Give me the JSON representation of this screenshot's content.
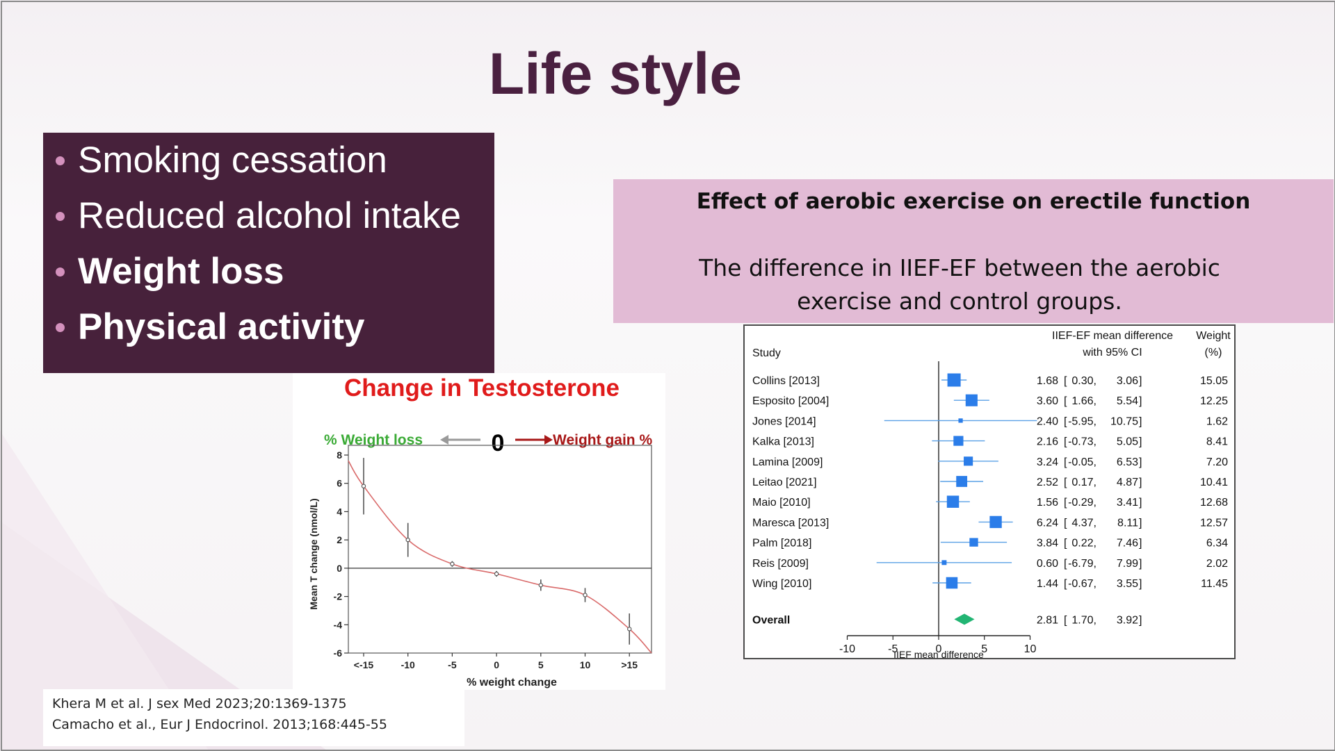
{
  "slide": {
    "title": "Life style",
    "colors": {
      "title": "#4a2040",
      "bullet_box": "#47213b",
      "bullet_dot": "#d491bd",
      "pink_box": "#e2bbd5"
    }
  },
  "bullets": [
    {
      "text": "Smoking cessation",
      "bold": false
    },
    {
      "text": "Reduced alcohol intake",
      "bold": false
    },
    {
      "text": "Weight loss",
      "bold": true
    },
    {
      "text": "Physical activity",
      "bold": true
    }
  ],
  "aerobic": {
    "heading": "Effect of aerobic exercise on erectile function",
    "description": "The difference in IIEF-EF between the aerobic exercise and control groups."
  },
  "chart_data": [
    {
      "type": "forest",
      "header": {
        "study": "Study",
        "ci_line1": "IIEF-EF mean difference",
        "ci_line2": "with 95% CI",
        "weight_line1": "Weight",
        "weight_line2": "(%)"
      },
      "studies": [
        {
          "name": "Collins [2013]",
          "md": "1.68",
          "lo": "0.30",
          "hi": "3.06",
          "weight": "15.05"
        },
        {
          "name": "Esposito [2004]",
          "md": "3.60",
          "lo": "1.66",
          "hi": "5.54",
          "weight": "12.25"
        },
        {
          "name": "Jones [2014]",
          "md": "2.40",
          "lo": "-5.95",
          "hi": "10.75",
          "weight": "1.62"
        },
        {
          "name": "Kalka [2013]",
          "md": "2.16",
          "lo": "-0.73",
          "hi": "5.05",
          "weight": "8.41"
        },
        {
          "name": "Lamina [2009]",
          "md": "3.24",
          "lo": "-0.05",
          "hi": "6.53",
          "weight": "7.20"
        },
        {
          "name": "Leitao [2021]",
          "md": "2.52",
          "lo": "0.17",
          "hi": "4.87",
          "weight": "10.41"
        },
        {
          "name": "Maio [2010]",
          "md": "1.56",
          "lo": "-0.29",
          "hi": "3.41",
          "weight": "12.68"
        },
        {
          "name": "Maresca [2013]",
          "md": "6.24",
          "lo": "4.37",
          "hi": "8.11",
          "weight": "12.57"
        },
        {
          "name": "Palm [2018]",
          "md": "3.84",
          "lo": "0.22",
          "hi": "7.46",
          "weight": "6.34"
        },
        {
          "name": "Reis [2009]",
          "md": "0.60",
          "lo": "-6.79",
          "hi": "7.99",
          "weight": "2.02"
        },
        {
          "name": "Wing [2010]",
          "md": "1.44",
          "lo": "-0.67",
          "hi": "3.55",
          "weight": "11.45"
        }
      ],
      "overall": {
        "name": "Overall",
        "md": "2.81",
        "lo": "1.70",
        "hi": "3.92"
      },
      "xticks": [
        "-10",
        "-5",
        "0",
        "5",
        "10"
      ],
      "xlim": [
        -10,
        10
      ],
      "xlabel": "IIEF mean difference",
      "colors": {
        "marker": "#2b7de9",
        "ci_line": "#5aa0e6",
        "diamond": "#22b573"
      }
    },
    {
      "type": "line",
      "title": "Change in Testosterone",
      "left_label": "% Weight loss",
      "zero_label": "0",
      "right_label": "Weight gain %",
      "categories": [
        "<-15",
        "-10",
        "-5",
        "0",
        "5",
        "10",
        ">15"
      ],
      "values": [
        5.8,
        2.0,
        0.3,
        -0.4,
        -1.2,
        -1.9,
        -4.3
      ],
      "error": [
        2.0,
        1.2,
        0.2,
        0.2,
        0.4,
        0.5,
        1.1
      ],
      "ylim": [
        -6,
        8
      ],
      "yticks": [
        "8",
        "6",
        "4",
        "2",
        "0",
        "-2",
        "-4",
        "-6"
      ],
      "xlabel": "% weight change",
      "ylabel": "Mean T change (nmol/L)",
      "colors": {
        "title": "#e01b1b",
        "left_label": "#3aaa35",
        "arrow_left": "#9a9a9a",
        "arrow_right": "#a81818",
        "curve": "#d96a6a"
      }
    }
  ],
  "references": [
    "Khera M et al. J sex Med 2023;20:1369-1375",
    "Camacho et al., Eur J Endocrinol. 2013;168:445-55"
  ]
}
